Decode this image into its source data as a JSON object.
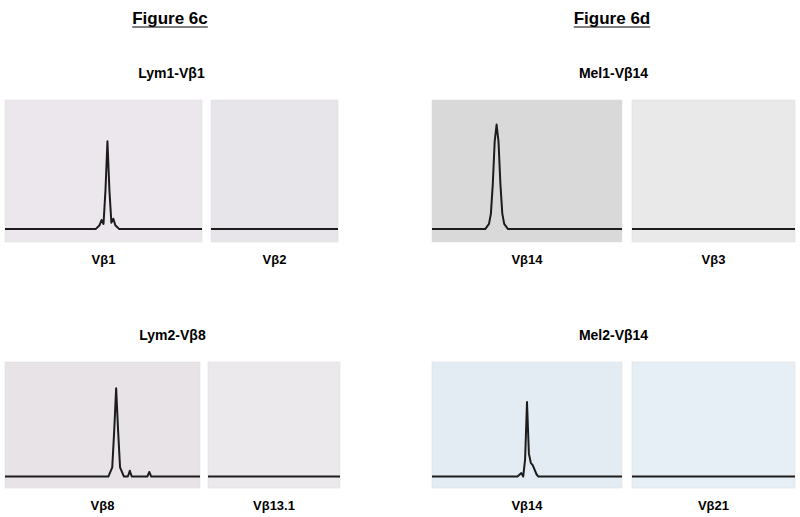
{
  "headings": [
    "Figure 6c",
    "Figure 6d"
  ],
  "chart_data": [
    {
      "type": "line",
      "title": "Lym1-Vβ1",
      "x_label": "Vβ1",
      "x": [
        0,
        46,
        48,
        49,
        50,
        51,
        52,
        53,
        54,
        55,
        56,
        58,
        100
      ],
      "values": [
        0,
        0,
        3,
        7,
        4,
        30,
        68,
        30,
        5,
        8,
        3,
        0,
        0
      ],
      "xlim": [
        0,
        100
      ],
      "ylim": [
        -10,
        100
      ],
      "tick_labels": false
    },
    {
      "type": "line",
      "x_label": "Vβ2",
      "x": [
        0,
        100
      ],
      "values": [
        0,
        0
      ],
      "xlim": [
        0,
        100
      ],
      "ylim": [
        -10,
        100
      ],
      "tick_labels": false
    },
    {
      "type": "line",
      "title": "Lym2-Vβ8",
      "x_label": "Vβ8",
      "x": [
        0,
        53,
        55,
        56,
        57,
        58,
        59,
        61,
        63,
        64,
        65,
        67,
        73,
        74,
        75,
        77,
        100
      ],
      "values": [
        0,
        0,
        8,
        40,
        77,
        40,
        8,
        0,
        0,
        5,
        0,
        0,
        0,
        4,
        0,
        0,
        0
      ],
      "xlim": [
        0,
        100
      ],
      "ylim": [
        -10,
        100
      ],
      "tick_labels": false
    },
    {
      "type": "line",
      "x_label": "Vβ13.1",
      "x": [
        0,
        100
      ],
      "values": [
        0,
        0
      ],
      "xlim": [
        0,
        100
      ],
      "ylim": [
        -10,
        100
      ],
      "tick_labels": false
    },
    {
      "type": "line",
      "title": "Mel1-Vβ14",
      "x_label": "Vβ14",
      "x": [
        0,
        28,
        30,
        31,
        32,
        33,
        34,
        35,
        36,
        37,
        38,
        40,
        100
      ],
      "values": [
        0,
        0,
        4,
        12,
        35,
        68,
        81,
        68,
        35,
        12,
        4,
        0,
        0
      ],
      "xlim": [
        0,
        100
      ],
      "ylim": [
        -10,
        100
      ],
      "tick_labels": false
    },
    {
      "type": "line",
      "x_label": "Vβ3",
      "x": [
        0,
        100
      ],
      "values": [
        0,
        0
      ],
      "xlim": [
        0,
        100
      ],
      "ylim": [
        -10,
        100
      ],
      "tick_labels": false
    },
    {
      "type": "line",
      "title": "Mel2-Vβ14",
      "x_label": "Vβ14",
      "x": [
        0,
        45,
        47,
        48,
        49,
        50,
        51,
        52,
        53,
        54,
        55,
        56,
        58,
        100
      ],
      "values": [
        0,
        0,
        3,
        0,
        15,
        65,
        20,
        12,
        10,
        6,
        2,
        0,
        0,
        0
      ],
      "xlim": [
        0,
        100
      ],
      "ylim": [
        -10,
        100
      ],
      "tick_labels": false
    },
    {
      "type": "line",
      "x_label": "Vβ21",
      "x": [
        0,
        100
      ],
      "values": [
        0,
        0
      ],
      "xlim": [
        0,
        100
      ],
      "ylim": [
        -10,
        100
      ],
      "tick_labels": false
    }
  ]
}
